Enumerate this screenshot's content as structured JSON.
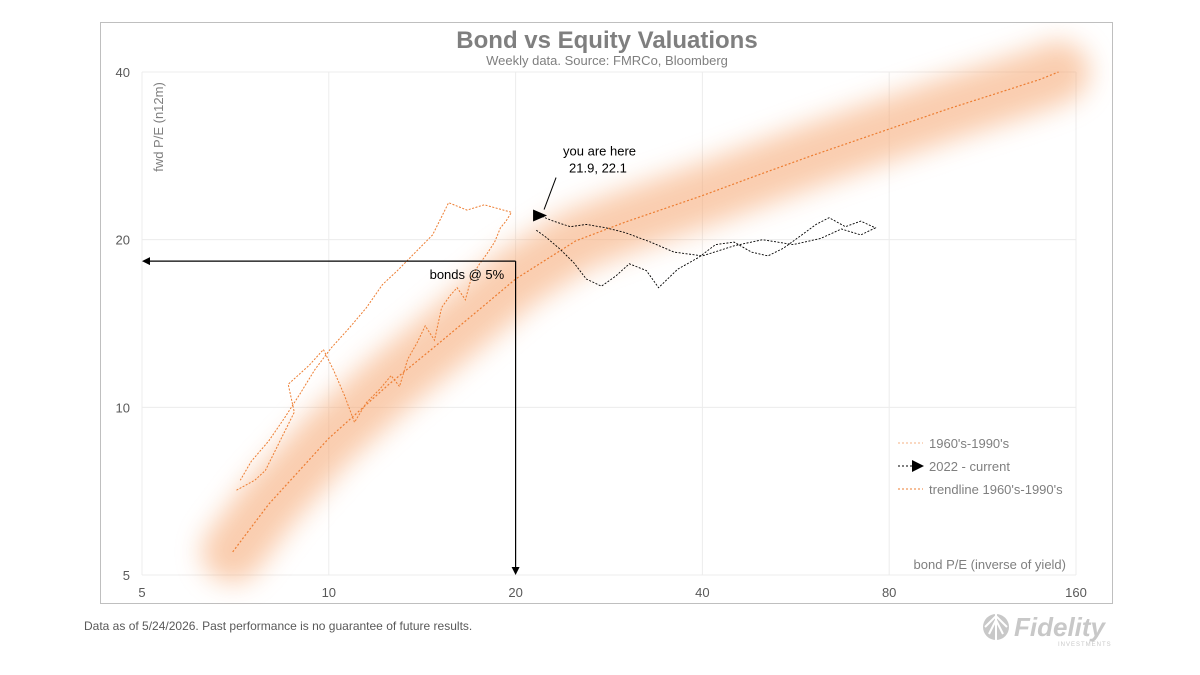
{
  "chart_data": {
    "type": "scatter",
    "title": "Bond vs Equity Valuations",
    "subtitle": "Weekly data.  Source: FMRCo, Bloomberg",
    "xlabel": "bond P/E (inverse of yield)",
    "ylabel": "fwd P/E (n12m)",
    "x_scale": "log",
    "y_scale": "log",
    "xlim": [
      5,
      160
    ],
    "ylim": [
      5,
      40
    ],
    "x_ticks": [
      "5",
      "10",
      "20",
      "40",
      "80",
      "160"
    ],
    "y_ticks": [
      "5",
      "10",
      "20",
      "40"
    ],
    "grid": true,
    "legend_position": "bottom-right",
    "legend": [
      "1960's-1990's",
      "2022 - current",
      "trendline 1960's-1990's"
    ],
    "series": [
      {
        "name": "1960's-1990's",
        "color": "#ed7d31",
        "x": [
          7.1,
          7.6,
          7.9,
          8.3,
          8.8,
          8.6,
          9.3,
          9.8,
          10.2,
          10.6,
          11.0,
          11.5,
          12.1,
          12.6,
          13.0,
          13.4,
          13.9,
          14.3,
          14.8,
          15.2,
          15.7,
          16.1,
          16.6,
          17.0,
          17.5,
          18.0,
          18.5,
          18.9,
          19.3,
          19.7,
          17.8,
          16.7,
          15.6,
          14.7,
          13.8,
          12.9,
          12.2,
          11.5,
          10.8,
          10.1,
          9.5,
          9.0,
          8.5,
          8.0,
          7.5,
          7.2
        ],
        "y": [
          7.1,
          7.4,
          7.7,
          8.6,
          9.8,
          11.0,
          11.9,
          12.7,
          11.6,
          10.5,
          9.4,
          10.2,
          10.8,
          11.4,
          10.9,
          12.2,
          13.1,
          14.0,
          13.2,
          15.1,
          15.9,
          16.4,
          15.6,
          17.2,
          18.1,
          18.9,
          19.8,
          21.0,
          21.6,
          22.4,
          23.1,
          22.6,
          23.3,
          20.4,
          19.0,
          17.6,
          16.6,
          15.1,
          13.9,
          12.8,
          11.7,
          10.6,
          9.6,
          8.7,
          8.0,
          7.4
        ]
      },
      {
        "name": "2022 - current",
        "color": "#000000",
        "x": [
          21.6,
          22.4,
          23.5,
          24.8,
          26.0,
          27.5,
          29.0,
          30.5,
          32.5,
          34.0,
          36.5,
          39.5,
          42.0,
          45.0,
          48.0,
          51.0,
          54.0,
          57.5,
          61.0,
          64.0,
          68.0,
          72.0,
          76.0,
          72.0,
          67.0,
          62.0,
          56.0,
          50.0,
          45.0,
          40.0,
          36.0,
          33.0,
          30.0,
          28.0,
          26.0,
          24.5,
          23.0,
          22.3,
          21.9
        ],
        "y": [
          20.8,
          20.2,
          19.3,
          18.2,
          17.0,
          16.5,
          17.2,
          18.1,
          17.6,
          16.4,
          17.7,
          18.6,
          19.6,
          19.8,
          19.0,
          18.7,
          19.3,
          20.3,
          21.3,
          21.9,
          21.1,
          21.6,
          21.0,
          20.4,
          20.9,
          20.1,
          19.6,
          20.0,
          19.5,
          18.7,
          19.0,
          19.8,
          20.6,
          21.0,
          21.3,
          21.1,
          21.6,
          21.9,
          22.1
        ]
      },
      {
        "name": "trendline 1960's-1990's",
        "color": "#ed7d31",
        "x": [
          7.0,
          8.0,
          10.0,
          12.5,
          15.0,
          18.0,
          20.0,
          25.0,
          30.0,
          40.0,
          50.0,
          60.0,
          80.0,
          100.0,
          120.0,
          140.0,
          150.0
        ],
        "y": [
          5.5,
          6.7,
          8.8,
          11.0,
          13.0,
          15.4,
          17.0,
          19.9,
          21.5,
          24.0,
          26.3,
          28.3,
          31.6,
          34.4,
          36.7,
          38.8,
          40.0
        ]
      }
    ],
    "current_point": {
      "x": 21.9,
      "y": 22.1
    },
    "annotations": {
      "you_are_here": "you are here",
      "you_are_here_value": "21.9, 22.1",
      "bonds": "bonds @ 5%",
      "bonds_x": 20,
      "bonds_y": 18.3
    }
  },
  "footer": {
    "note": "Data as of 5/24/2026. Past performance is no guarantee of future results.",
    "logo_text": "Fidelity",
    "logo_subtext": "INVESTMENTS"
  }
}
